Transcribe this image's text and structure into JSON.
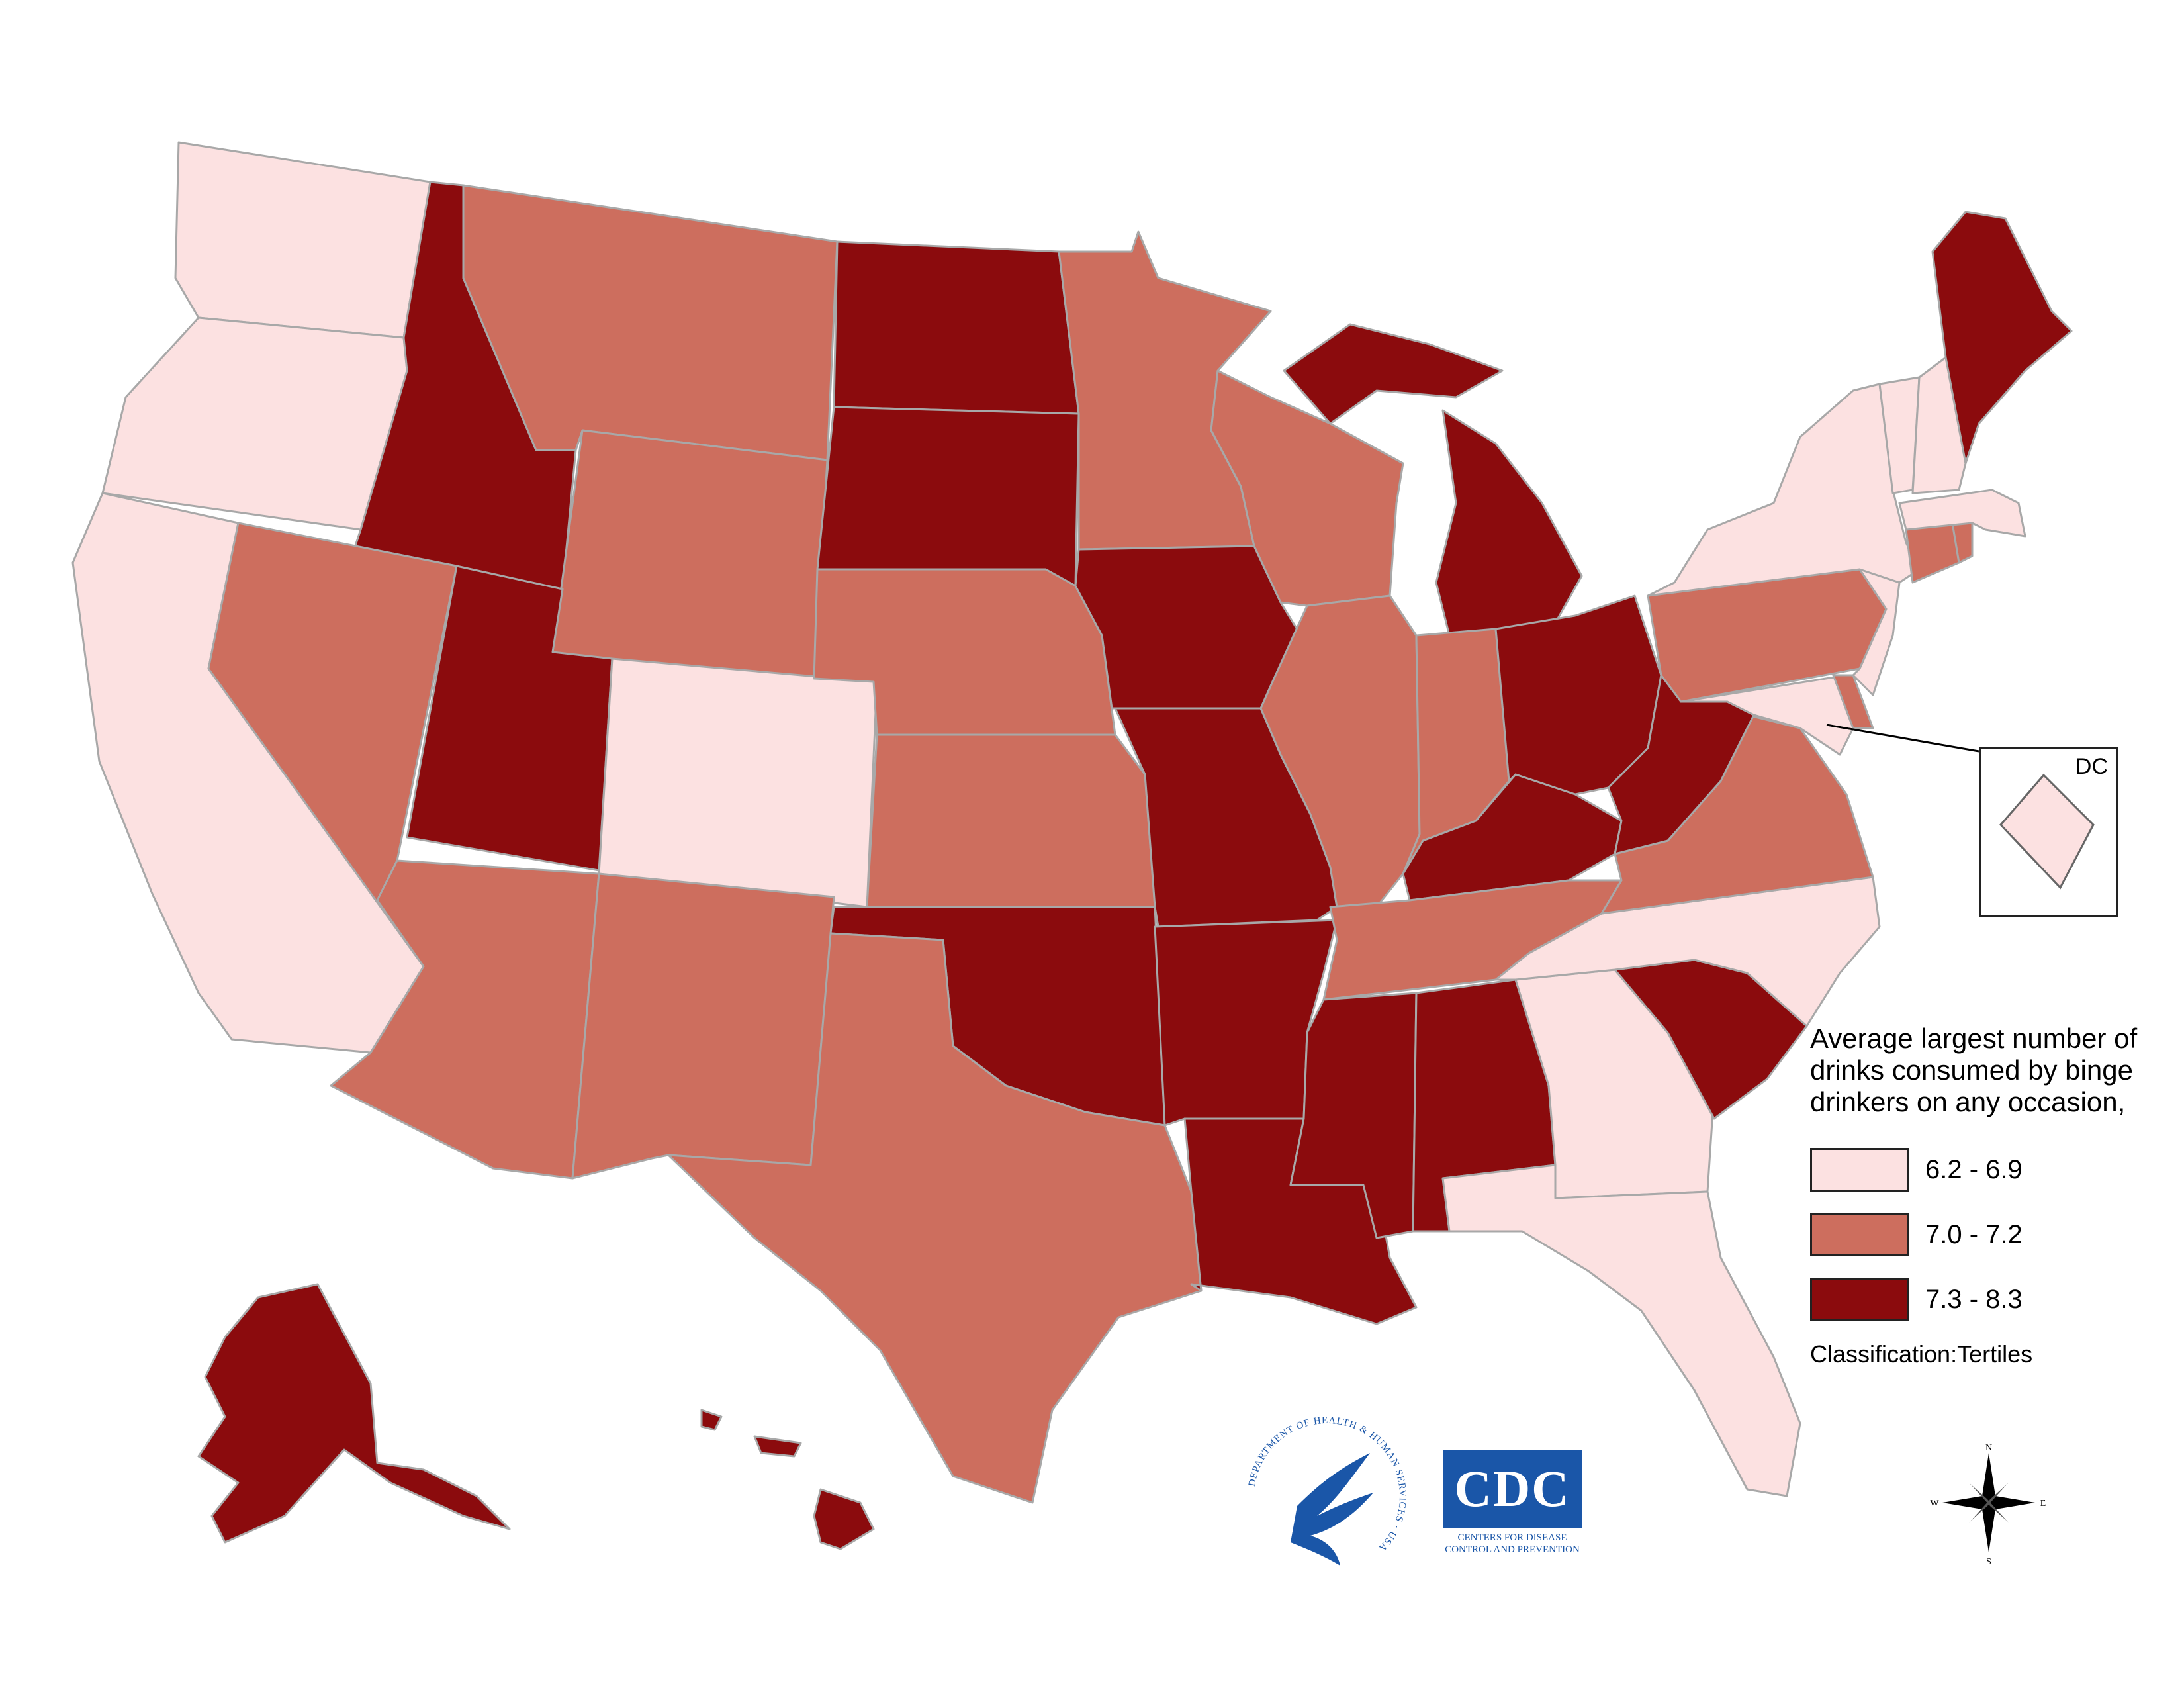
{
  "colors": {
    "low": "#fce1e1",
    "mid": "#cd6e5e",
    "high": "#8b0b0d",
    "border": "#a8a8a8",
    "coast": "#5a5a5a",
    "cdc_blue": "#1a56a8"
  },
  "legend": {
    "title": "Average largest number of drinks consumed by binge drinkers on any occasion,",
    "items": [
      {
        "label": "6.2 - 6.9",
        "tier": "low"
      },
      {
        "label": "7.0 - 7.2",
        "tier": "mid"
      },
      {
        "label": "7.3 - 8.3",
        "tier": "high"
      }
    ],
    "classification": "Classification:Tertiles"
  },
  "inset": {
    "label": "DC",
    "tier": "low"
  },
  "logos": {
    "hhs": {
      "icon": "hhs-eagle-icon",
      "text": "DEPARTMENT OF HEALTH & HUMAN SERVICES · USA"
    },
    "cdc": {
      "icon": "cdc-logo-icon",
      "text": "CDC",
      "subtitle_line1": "CENTERS FOR DISEASE",
      "subtitle_line2": "CONTROL AND PREVENTION"
    }
  },
  "compass": {
    "icon": "compass-rose-icon",
    "n": "N",
    "s": "S",
    "e": "E",
    "w": "W"
  },
  "states": [
    {
      "abbr": "WA",
      "tier": "low"
    },
    {
      "abbr": "OR",
      "tier": "low"
    },
    {
      "abbr": "CA",
      "tier": "low"
    },
    {
      "abbr": "ID",
      "tier": "high"
    },
    {
      "abbr": "NV",
      "tier": "mid"
    },
    {
      "abbr": "MT",
      "tier": "mid"
    },
    {
      "abbr": "WY",
      "tier": "mid"
    },
    {
      "abbr": "UT",
      "tier": "high"
    },
    {
      "abbr": "CO",
      "tier": "low"
    },
    {
      "abbr": "AZ",
      "tier": "mid"
    },
    {
      "abbr": "NM",
      "tier": "mid"
    },
    {
      "abbr": "ND",
      "tier": "high"
    },
    {
      "abbr": "SD",
      "tier": "high"
    },
    {
      "abbr": "NE",
      "tier": "mid"
    },
    {
      "abbr": "KS",
      "tier": "mid"
    },
    {
      "abbr": "OK",
      "tier": "high"
    },
    {
      "abbr": "TX",
      "tier": "mid"
    },
    {
      "abbr": "MN",
      "tier": "mid"
    },
    {
      "abbr": "IA",
      "tier": "high"
    },
    {
      "abbr": "MO",
      "tier": "high"
    },
    {
      "abbr": "AR",
      "tier": "high"
    },
    {
      "abbr": "LA",
      "tier": "high"
    },
    {
      "abbr": "WI",
      "tier": "mid"
    },
    {
      "abbr": "IL",
      "tier": "mid"
    },
    {
      "abbr": "MI",
      "tier": "high"
    },
    {
      "abbr": "IN",
      "tier": "mid"
    },
    {
      "abbr": "OH",
      "tier": "high"
    },
    {
      "abbr": "KY",
      "tier": "high"
    },
    {
      "abbr": "TN",
      "tier": "mid"
    },
    {
      "abbr": "MS",
      "tier": "high"
    },
    {
      "abbr": "AL",
      "tier": "high"
    },
    {
      "abbr": "GA",
      "tier": "low"
    },
    {
      "abbr": "FL",
      "tier": "low"
    },
    {
      "abbr": "SC",
      "tier": "high"
    },
    {
      "abbr": "NC",
      "tier": "low"
    },
    {
      "abbr": "VA",
      "tier": "mid"
    },
    {
      "abbr": "WV",
      "tier": "high"
    },
    {
      "abbr": "MD",
      "tier": "low"
    },
    {
      "abbr": "DE",
      "tier": "mid"
    },
    {
      "abbr": "PA",
      "tier": "mid"
    },
    {
      "abbr": "NJ",
      "tier": "low"
    },
    {
      "abbr": "NY",
      "tier": "low"
    },
    {
      "abbr": "CT",
      "tier": "mid"
    },
    {
      "abbr": "RI",
      "tier": "mid"
    },
    {
      "abbr": "MA",
      "tier": "low"
    },
    {
      "abbr": "VT",
      "tier": "low"
    },
    {
      "abbr": "NH",
      "tier": "low"
    },
    {
      "abbr": "ME",
      "tier": "high"
    },
    {
      "abbr": "AK",
      "tier": "high"
    },
    {
      "abbr": "HI",
      "tier": "high"
    }
  ]
}
